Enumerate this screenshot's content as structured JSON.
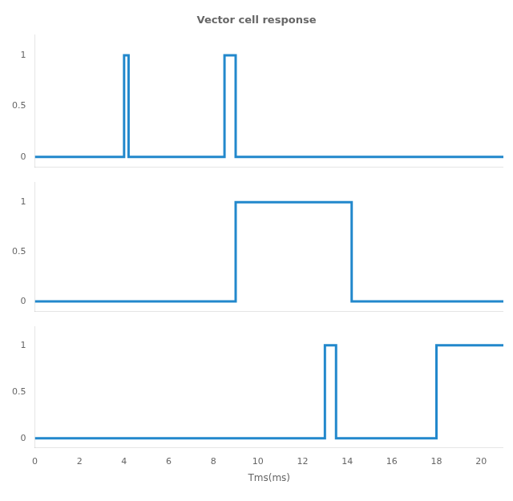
{
  "chart_data": [
    {
      "type": "line",
      "title": "Vector cell response",
      "line_style": "step",
      "x": [
        0,
        4,
        4,
        4.2,
        4.2,
        8.5,
        8.5,
        9.0,
        9.0,
        21
      ],
      "series": [
        {
          "color": "#2288cc",
          "values": [
            0,
            0,
            1,
            1,
            0,
            0,
            1,
            1,
            0,
            0
          ]
        }
      ],
      "xlim": [
        0,
        21
      ],
      "xticks": [
        0,
        2,
        4,
        6,
        8,
        10,
        12,
        14,
        16,
        18,
        20
      ],
      "ylim": [
        -0.1,
        1.2
      ],
      "yticks": [
        0,
        0.5,
        1
      ],
      "grid": false,
      "tick_labels": "y"
    },
    {
      "type": "line",
      "line_style": "step",
      "x": [
        0,
        9,
        9,
        14,
        14,
        14.2,
        14.2,
        21
      ],
      "series": [
        {
          "color": "#2288cc",
          "values": [
            0,
            0,
            1,
            1,
            1,
            1,
            0,
            0
          ]
        }
      ],
      "xlim": [
        0,
        21
      ],
      "xticks": [
        0,
        2,
        4,
        6,
        8,
        10,
        12,
        14,
        16,
        18,
        20
      ],
      "ylim": [
        -0.1,
        1.2
      ],
      "yticks": [
        0,
        0.5,
        1
      ],
      "grid": false,
      "tick_labels": "y"
    },
    {
      "type": "line",
      "line_style": "step",
      "xlabel": "Tms(ms)",
      "x": [
        0,
        13,
        13,
        13.5,
        13.5,
        18,
        18,
        21
      ],
      "series": [
        {
          "color": "#2288cc",
          "values": [
            0,
            0,
            1,
            1,
            0,
            0,
            1,
            1
          ]
        }
      ],
      "xlim": [
        0,
        21
      ],
      "xticks": [
        0,
        2,
        4,
        6,
        8,
        10,
        12,
        14,
        16,
        18,
        20
      ],
      "ylim": [
        -0.1,
        1.2
      ],
      "yticks": [
        0,
        0.5,
        1
      ],
      "grid": false
    }
  ]
}
